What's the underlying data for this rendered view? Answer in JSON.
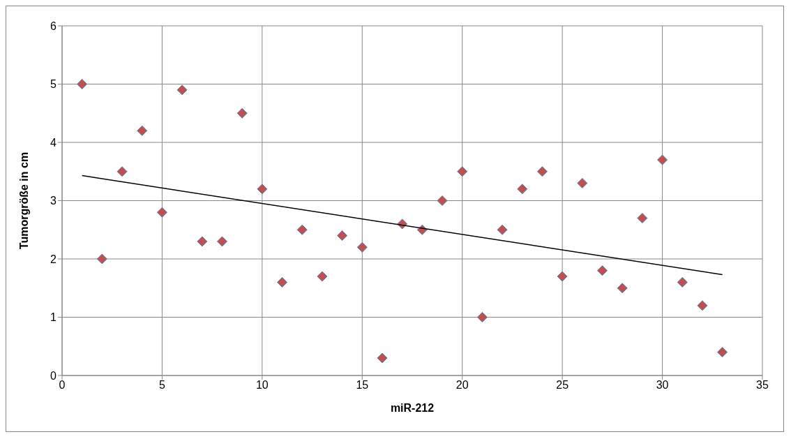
{
  "chart_data": {
    "type": "scatter",
    "xlabel": "miR-212",
    "ylabel": "Tumorgröße in cm",
    "xlim": [
      0,
      35
    ],
    "xticks": [
      0,
      5,
      10,
      15,
      20,
      25,
      30,
      35
    ],
    "ylim": [
      0,
      6
    ],
    "yticks": [
      0,
      1,
      2,
      3,
      4,
      5,
      6
    ],
    "grid": true,
    "marker": "diamond",
    "series": [
      {
        "color": "#c0504d",
        "x": [
          1,
          2,
          3,
          4,
          5,
          6,
          7,
          8,
          9,
          10,
          11,
          12,
          13,
          14,
          15,
          16,
          17,
          18,
          19,
          20,
          21,
          22,
          23,
          24,
          25,
          26,
          27,
          28,
          29,
          30,
          31,
          32,
          33
        ],
        "values": [
          5.0,
          2.0,
          3.5,
          4.2,
          2.8,
          4.9,
          2.3,
          2.3,
          4.5,
          3.2,
          1.6,
          2.5,
          1.7,
          2.4,
          2.2,
          0.3,
          2.6,
          2.5,
          3.0,
          3.5,
          1.0,
          2.5,
          3.2,
          3.5,
          1.7,
          3.3,
          1.8,
          1.5,
          2.7,
          3.7,
          1.6,
          1.2,
          0.4
        ]
      },
      {
        "type": "line",
        "color": "#000000",
        "marker": "none",
        "x": [
          1,
          33
        ],
        "values": [
          3.43,
          1.73
        ]
      }
    ]
  }
}
